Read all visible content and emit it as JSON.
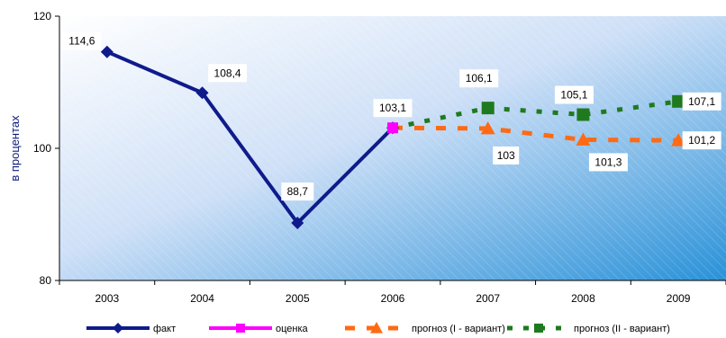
{
  "chart_data": {
    "type": "line",
    "title": "",
    "xlabel": "",
    "ylabel": "в процентах",
    "ylim": [
      80,
      120
    ],
    "yticks": [
      "80",
      "100",
      "120"
    ],
    "categories": [
      "2003",
      "2004",
      "2005",
      "2006",
      "2007",
      "2008",
      "2009"
    ],
    "grid": false,
    "legend_position": "bottom",
    "series": [
      {
        "name": "факт",
        "color": "#0f1b8c",
        "style": "solid",
        "marker": "diamond",
        "x": [
          "2003",
          "2004",
          "2005",
          "2006"
        ],
        "values": [
          114.6,
          108.4,
          88.7,
          103.1
        ],
        "labels": [
          "114,6",
          "108,4",
          "88,7",
          "103,1"
        ]
      },
      {
        "name": "оценка",
        "color": "#ff00ff",
        "style": "solid",
        "marker": "square",
        "x": [
          "2006"
        ],
        "values": [
          103.1
        ],
        "labels": []
      },
      {
        "name": "прогноз (I - вариант)",
        "color": "#ff6a13",
        "style": "dashed",
        "marker": "triangle",
        "x": [
          "2006",
          "2007",
          "2008",
          "2009"
        ],
        "values": [
          103.1,
          103,
          101.3,
          101.2
        ],
        "labels": [
          "",
          "103",
          "101,3",
          "101,2"
        ]
      },
      {
        "name": "прогноз (II - вариант)",
        "color": "#1f7a1f",
        "style": "dotted",
        "marker": "square",
        "x": [
          "2006",
          "2007",
          "2008",
          "2009"
        ],
        "values": [
          103.1,
          106.1,
          105.1,
          107.1
        ],
        "labels": [
          "",
          "106,1",
          "105,1",
          "107,1"
        ]
      }
    ]
  }
}
